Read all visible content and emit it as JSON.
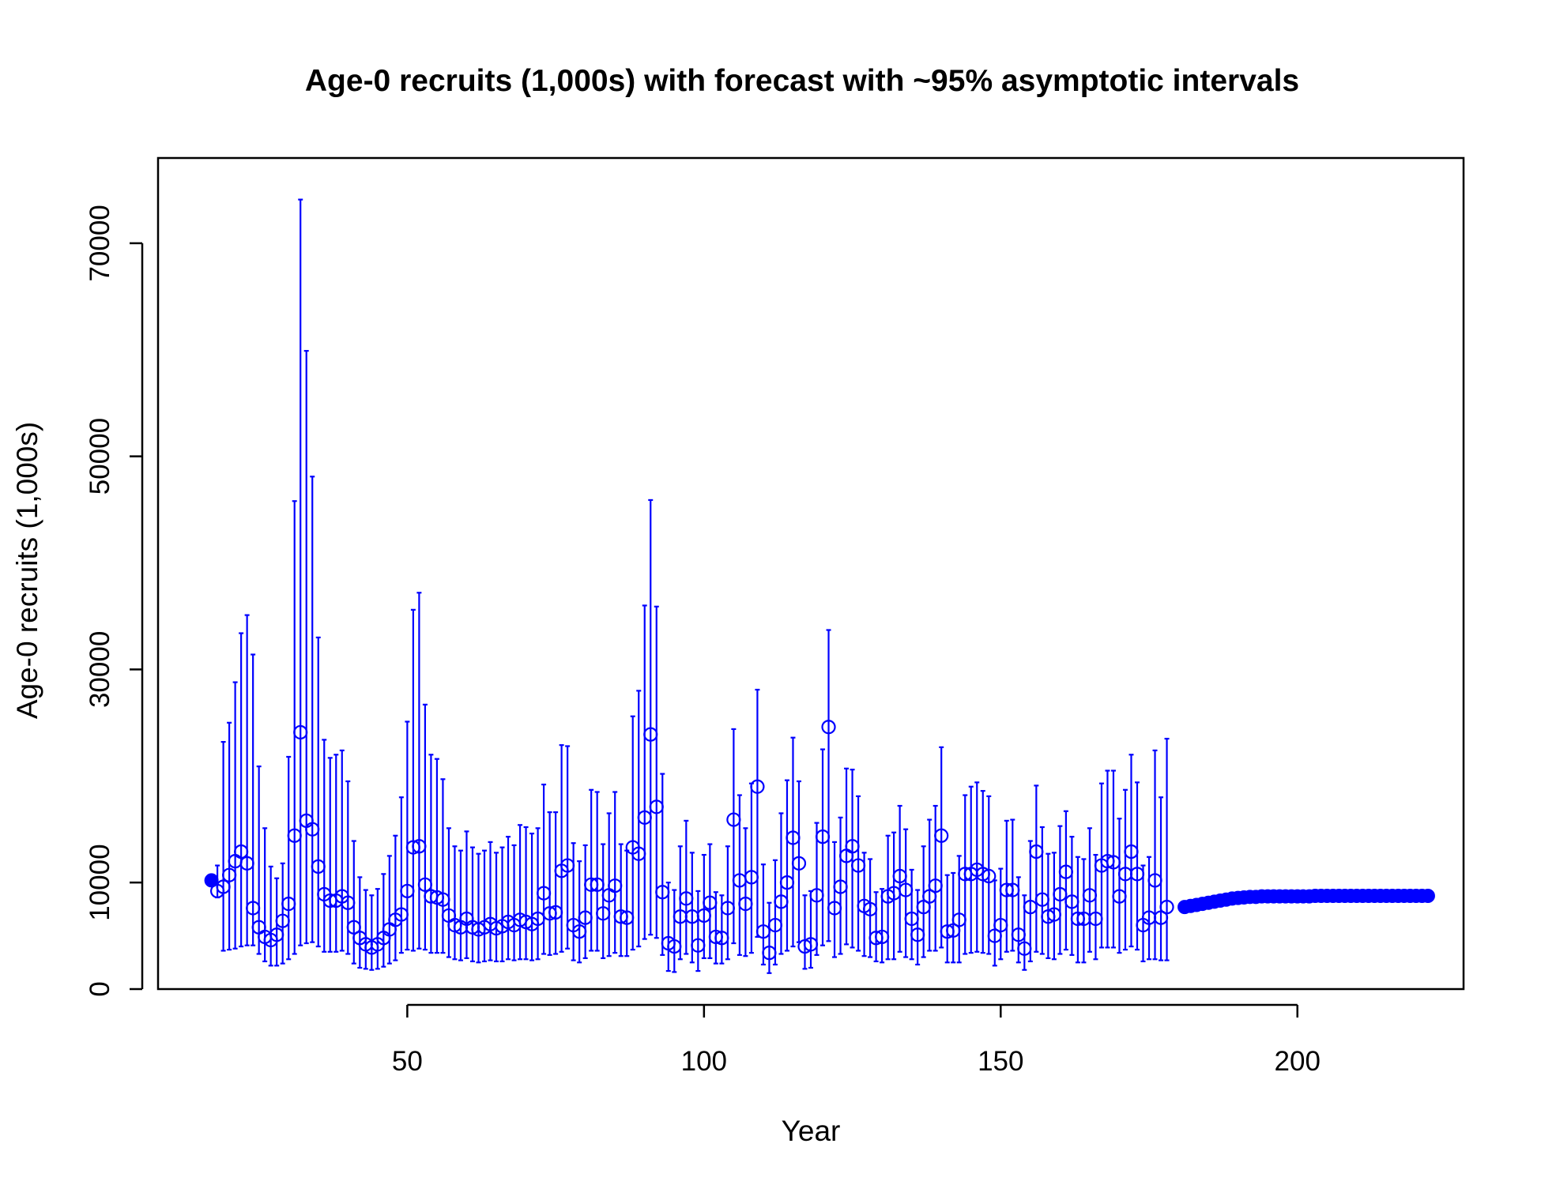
{
  "chart_data": {
    "type": "scatter",
    "title": "Age-0 recruits (1,000s) with forecast with ~95% asymptotic intervals",
    "xlabel": "Year",
    "ylabel": "Age-0 recruits (1,000s)",
    "xlim": [
      8,
      228
    ],
    "ylim": [
      0,
      78000
    ],
    "xticks": [
      50,
      100,
      150,
      200
    ],
    "yticks": [
      0,
      10000,
      30000,
      50000,
      70000
    ],
    "color": "#0000ff",
    "virgin": {
      "x": 17,
      "y": 10200
    },
    "x_start": 18,
    "estimates": [
      9200,
      9600,
      10700,
      12000,
      12900,
      11800,
      7600,
      5800,
      4900,
      4600,
      5100,
      6400,
      8000,
      14400,
      24100,
      15800,
      15000,
      11500,
      8900,
      8300,
      8300,
      8700,
      8100,
      5800,
      4800,
      4200,
      3900,
      4200,
      4800,
      5600,
      6500,
      7000,
      9200,
      13300,
      13400,
      9800,
      8700,
      8600,
      8400,
      6900,
      6000,
      5800,
      6600,
      5800,
      5600,
      5800,
      6100,
      5700,
      5900,
      6300,
      6000,
      6500,
      6300,
      6100,
      6600,
      9000,
      7100,
      7200,
      11100,
      11600,
      6000,
      5400,
      6700,
      9800,
      9800,
      7100,
      8800,
      9700,
      6800,
      6700,
      13300,
      12700,
      16100,
      23900,
      17100,
      9100,
      4300,
      4000,
      6800,
      8500,
      6800,
      4100,
      6900,
      8100,
      4900,
      4800,
      7600,
      15900,
      10200,
      8000,
      10500,
      19000,
      5400,
      3400,
      6000,
      8200,
      10000,
      14200,
      11800,
      4000,
      4200,
      8800,
      14300,
      24600,
      7600,
      9600,
      12500,
      13400,
      11600,
      7800,
      7500,
      4800,
      4900,
      8700,
      9000,
      10600,
      9300,
      6600,
      5100,
      7700,
      8700,
      9700,
      14400,
      5400,
      5500,
      6500,
      10800,
      10800,
      11200,
      10800,
      10600,
      5000,
      6000,
      9300,
      9300,
      5100,
      3800,
      7700,
      12900,
      8400,
      6800,
      7000,
      8900,
      11000,
      8200,
      6600,
      6600,
      8800,
      6600,
      11600,
      12000,
      11900,
      8700,
      10800,
      12900,
      10800,
      6000,
      6700,
      10200,
      6700,
      7700
    ],
    "upper": [
      11600,
      23200,
      25000,
      28800,
      33400,
      35100,
      31400,
      20900,
      15100,
      11500,
      10400,
      11800,
      21800,
      45800,
      74100,
      59900,
      48100,
      33000,
      23400,
      21700,
      22000,
      22400,
      19500,
      13900,
      10500,
      9300,
      8800,
      9400,
      10800,
      12500,
      14400,
      18000,
      25100,
      35600,
      37200,
      26700,
      22000,
      21600,
      19700,
      15100,
      13400,
      13000,
      14800,
      13300,
      12700,
      13000,
      13800,
      12800,
      13300,
      14300,
      13500,
      15400,
      15200,
      14600,
      15100,
      19200,
      16600,
      16600,
      22900,
      22800,
      13700,
      12000,
      13500,
      18700,
      18500,
      13600,
      16500,
      18500,
      13600,
      13000,
      25600,
      28000,
      36000,
      45900,
      35900,
      20200,
      10000,
      9300,
      13400,
      15800,
      12800,
      9200,
      12600,
      13600,
      9100,
      8800,
      13400,
      24400,
      18200,
      15100,
      19300,
      28100,
      11700,
      8100,
      12100,
      16500,
      19600,
      23600,
      19500,
      8800,
      9200,
      15600,
      22500,
      33700,
      13800,
      16100,
      20700,
      20600,
      18100,
      12800,
      12200,
      9100,
      9400,
      14400,
      14700,
      17200,
      15000,
      11200,
      9300,
      13400,
      15900,
      17200,
      22700,
      10700,
      10900,
      12500,
      18200,
      19000,
      19400,
      18600,
      18100,
      10200,
      11300,
      15800,
      15900,
      10500,
      8800,
      13900,
      19100,
      15200,
      12700,
      12800,
      15300,
      16700,
      14300,
      12400,
      12200,
      15100,
      12600,
      19300,
      20500,
      20500,
      16000,
      18700,
      22000,
      19400,
      11600,
      12400,
      22400,
      18000,
      23500
    ],
    "lower": [
      8600,
      3600,
      3700,
      3800,
      4000,
      4100,
      4100,
      3300,
      2600,
      2200,
      2200,
      2400,
      2800,
      3300,
      4100,
      4300,
      4400,
      4000,
      3500,
      3500,
      3500,
      3600,
      3300,
      2400,
      2000,
      1900,
      1800,
      1900,
      2100,
      2400,
      2700,
      3400,
      3700,
      3600,
      3800,
      3700,
      3400,
      3400,
      3400,
      3000,
      2800,
      2700,
      2900,
      2600,
      2500,
      2600,
      2700,
      2600,
      2600,
      2800,
      2700,
      2800,
      2800,
      2700,
      2800,
      3300,
      3200,
      3300,
      3500,
      3800,
      2700,
      2500,
      2900,
      3600,
      3600,
      2900,
      3100,
      3400,
      3100,
      3100,
      3700,
      4000,
      4700,
      5100,
      4800,
      3200,
      1700,
      1600,
      2800,
      3300,
      2500,
      1700,
      2900,
      2900,
      2400,
      2400,
      2800,
      4300,
      3200,
      3100,
      3400,
      4900,
      2300,
      1500,
      2300,
      3300,
      3600,
      4000,
      4400,
      1900,
      2000,
      3200,
      4100,
      4500,
      3000,
      3300,
      4200,
      3900,
      3600,
      3100,
      3000,
      2600,
      2500,
      2800,
      2800,
      3500,
      3000,
      2800,
      2300,
      3000,
      3600,
      3600,
      3900,
      2500,
      2500,
      2500,
      3300,
      3400,
      3500,
      3400,
      3300,
      2200,
      2800,
      3500,
      3600,
      2500,
      1800,
      2600,
      3500,
      3300,
      2900,
      2800,
      3300,
      3700,
      3200,
      2500,
      2500,
      3500,
      2800,
      3900,
      3900,
      3900,
      3400,
      3700,
      4000,
      3700,
      2600,
      2800,
      2800,
      2700,
      2700
    ],
    "forecast_start": 181,
    "forecast": [
      7700,
      7800,
      7900,
      8000,
      8100,
      8200,
      8300,
      8400,
      8500,
      8550,
      8600,
      8650,
      8650,
      8700,
      8700,
      8700,
      8700,
      8700,
      8700,
      8700,
      8700,
      8700,
      8750,
      8750,
      8750,
      8750,
      8750,
      8750,
      8750,
      8750,
      8750,
      8750,
      8750,
      8750,
      8750,
      8750,
      8750,
      8750,
      8750,
      8750,
      8750,
      8750
    ]
  }
}
